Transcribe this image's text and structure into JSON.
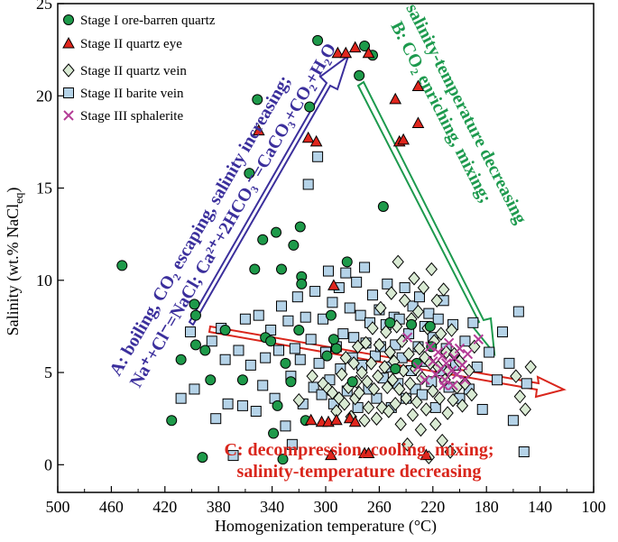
{
  "chart_data": {
    "type": "scatter",
    "xlabel": "Homogenization temperature (°C)",
    "ylabel_prefix": "Salinity (wt.% NaCl",
    "ylabel_sub": "eq",
    "ylabel_suffix": ")",
    "xlim": [
      500,
      100
    ],
    "ylim": [
      -1.5,
      25
    ],
    "xticks": [
      "500",
      "460",
      "420",
      "380",
      "340",
      "300",
      "260",
      "220",
      "180",
      "140",
      "100"
    ],
    "yticks": [
      "0",
      "5",
      "10",
      "15",
      "20",
      "25"
    ],
    "legend": [
      "Stage I ore-barren quartz",
      "Stage II quartz eye",
      "Stage II quartz vein",
      "Stage II barite vein",
      "Stage III sphalerite"
    ],
    "annotations": {
      "a_line1": "A: boiling, CO₂ escaping, salinity increasing;",
      "a_line2": "Na⁺+Cl⁻=NaCl; Ca²⁺+2HCO₃⁻=CaCO₃+CO₂+H₂O",
      "b_line1": "B: CO₂ enriching, mixing;",
      "b_line2": "salinity-temperature decreasing",
      "c_line1": "C: decompression, cooling, mixing;",
      "c_line2": "salinity-temperature decreasing"
    },
    "colors": {
      "stage1": "#1e9a4a",
      "stage2_eye": "#e0261d",
      "stage2_vein": "#d9ead3",
      "stage2_barite": "#b5d3e8",
      "stage3": "#b43c96",
      "arrow_a": "#3b2f9c",
      "arrow_b": "#1d9a4e",
      "arrow_c": "#d9261c"
    },
    "series": [
      {
        "name": "Stage I ore-barren quartz",
        "marker": "circle",
        "points": [
          [
            452,
            10.8
          ],
          [
            408,
            5.7
          ],
          [
            415,
            2.4
          ],
          [
            398,
            8.7
          ],
          [
            397,
            8.1
          ],
          [
            397,
            6.5
          ],
          [
            392,
            0.4
          ],
          [
            390,
            6.2
          ],
          [
            386,
            4.6
          ],
          [
            375,
            7.3
          ],
          [
            362,
            4.6
          ],
          [
            357,
            15.8
          ],
          [
            353,
            10.6
          ],
          [
            351,
            19.8
          ],
          [
            347,
            12.2
          ],
          [
            345,
            6.9
          ],
          [
            341,
            6.7
          ],
          [
            339,
            1.7
          ],
          [
            337,
            12.6
          ],
          [
            336,
            3.2
          ],
          [
            333,
            10.6
          ],
          [
            332,
            0.3
          ],
          [
            330,
            5.5
          ],
          [
            326,
            4.5
          ],
          [
            324,
            11.9
          ],
          [
            320,
            7.3
          ],
          [
            319,
            12.9
          ],
          [
            318,
            10.2
          ],
          [
            318,
            9.8
          ],
          [
            315,
            2.4
          ],
          [
            312,
            19.4
          ],
          [
            306,
            23
          ],
          [
            299,
            5.9
          ],
          [
            296,
            8.1
          ],
          [
            294,
            6.8
          ],
          [
            292,
            6.3
          ],
          [
            284,
            11
          ],
          [
            280,
            4.5
          ],
          [
            275,
            21.1
          ],
          [
            271,
            22.7
          ],
          [
            265,
            22.2
          ],
          [
            257,
            14
          ],
          [
            252,
            7.7
          ],
          [
            248,
            5.2
          ],
          [
            236,
            7.6
          ],
          [
            232,
            5.5
          ],
          [
            222,
            7.5
          ],
          [
            221,
            6.4
          ]
        ]
      },
      {
        "name": "Stage II quartz eye",
        "marker": "triangle",
        "points": [
          [
            350,
            18.1
          ],
          [
            313,
            17.7
          ],
          [
            311,
            2.4
          ],
          [
            307,
            17.5
          ],
          [
            303,
            2.3
          ],
          [
            298,
            2.3
          ],
          [
            296,
            0.5
          ],
          [
            294,
            9.7
          ],
          [
            292,
            2.4
          ],
          [
            291,
            22.3
          ],
          [
            285,
            22.3
          ],
          [
            282,
            2.5
          ],
          [
            278,
            22.6
          ],
          [
            278,
            2.3
          ],
          [
            271,
            0.6
          ],
          [
            268,
            22.3
          ],
          [
            268,
            0.6
          ],
          [
            248,
            19.8
          ],
          [
            245,
            17.5
          ],
          [
            242,
            17.6
          ],
          [
            231,
            20.5
          ],
          [
            231,
            18.5
          ],
          [
            225,
            0.5
          ]
        ]
      },
      {
        "name": "Stage II quartz vein",
        "marker": "diamond",
        "points": [
          [
            320,
            3.5
          ],
          [
            310,
            4.8
          ],
          [
            302,
            4.4
          ],
          [
            298,
            4.1
          ],
          [
            295,
            3.9
          ],
          [
            292,
            2.9
          ],
          [
            290,
            3.6
          ],
          [
            288,
            4.9
          ],
          [
            286,
            3.3
          ],
          [
            285,
            5.8
          ],
          [
            283,
            4.2
          ],
          [
            281,
            2.6
          ],
          [
            279,
            5.5
          ],
          [
            278,
            3.6
          ],
          [
            277,
            4.5
          ],
          [
            276,
            6.4
          ],
          [
            275,
            3.9
          ],
          [
            273,
            5.0
          ],
          [
            271,
            2.4
          ],
          [
            270,
            6.6
          ],
          [
            269,
            4.5
          ],
          [
            268,
            3.1
          ],
          [
            266,
            5.5
          ],
          [
            265,
            7.4
          ],
          [
            264,
            4.1
          ],
          [
            262,
            2.5
          ],
          [
            261,
            4.8
          ],
          [
            260,
            6.5
          ],
          [
            259,
            8.5
          ],
          [
            258,
            3.1
          ],
          [
            256,
            5.3
          ],
          [
            255,
            7.2
          ],
          [
            254,
            4.2
          ],
          [
            253,
            2.9
          ],
          [
            252,
            6.1
          ],
          [
            251,
            9.3
          ],
          [
            250,
            4.6
          ],
          [
            249,
            5.6
          ],
          [
            248,
            3.3
          ],
          [
            247,
            7.5
          ],
          [
            246,
            11.0
          ],
          [
            245,
            4.1
          ],
          [
            244,
            2.2
          ],
          [
            243,
            6.7
          ],
          [
            242,
            5.1
          ],
          [
            241,
            8.9
          ],
          [
            240,
            3.6
          ],
          [
            239,
            1.1
          ],
          [
            238,
            6.0
          ],
          [
            237,
            4.4
          ],
          [
            236,
            7.9
          ],
          [
            235,
            2.7
          ],
          [
            234,
            10.1
          ],
          [
            233,
            5.2
          ],
          [
            232,
            3.4
          ],
          [
            231,
            8.3
          ],
          [
            230,
            6.3
          ],
          [
            229,
            1.9
          ],
          [
            228,
            4.7
          ],
          [
            227,
            9.6
          ],
          [
            226,
            5.8
          ],
          [
            225,
            3.0
          ],
          [
            224,
            7.4
          ],
          [
            223,
            0.4
          ],
          [
            222,
            5.5
          ],
          [
            221,
            10.6
          ],
          [
            220,
            4.0
          ],
          [
            219,
            6.7
          ],
          [
            218,
            2.2
          ],
          [
            217,
            8.9
          ],
          [
            216,
            5.3
          ],
          [
            215,
            3.6
          ],
          [
            214,
            7.1
          ],
          [
            213,
            1.3
          ],
          [
            212,
            9.5
          ],
          [
            211,
            4.6
          ],
          [
            210,
            6.1
          ],
          [
            209,
            2.8
          ],
          [
            208,
            5.1
          ],
          [
            207,
            0.7
          ],
          [
            206,
            7.3
          ],
          [
            205,
            3.5
          ],
          [
            204,
            6.0
          ],
          [
            202,
            4.2
          ],
          [
            200,
            5.6
          ],
          [
            198,
            3.2
          ],
          [
            196,
            4.4
          ],
          [
            193,
            5.1
          ],
          [
            191,
            3.8
          ],
          [
            189,
            6.4
          ],
          [
            158,
            4.8
          ],
          [
            155,
            3.7
          ],
          [
            151,
            3.0
          ],
          [
            147,
            5.3
          ]
        ]
      },
      {
        "name": "Stage II barite vein",
        "marker": "square",
        "points": [
          [
            408,
            3.6
          ],
          [
            401,
            7.2
          ],
          [
            398,
            4.1
          ],
          [
            385,
            6.7
          ],
          [
            382,
            2.5
          ],
          [
            378,
            7.4
          ],
          [
            375,
            5.7
          ],
          [
            373,
            3.3
          ],
          [
            369,
            0.5
          ],
          [
            365,
            6.2
          ],
          [
            362,
            3.2
          ],
          [
            360,
            7.9
          ],
          [
            356,
            5.4
          ],
          [
            352,
            2.9
          ],
          [
            350,
            8.1
          ],
          [
            347,
            4.3
          ],
          [
            345,
            5.8
          ],
          [
            341,
            7.3
          ],
          [
            338,
            3.6
          ],
          [
            335,
            6.2
          ],
          [
            333,
            8.6
          ],
          [
            330,
            2.1
          ],
          [
            328,
            7.8
          ],
          [
            326,
            4.8
          ],
          [
            325,
            1.1
          ],
          [
            323,
            6.3
          ],
          [
            321,
            9.1
          ],
          [
            319,
            5.7
          ],
          [
            317,
            3.3
          ],
          [
            315,
            8.0
          ],
          [
            313,
            15.2
          ],
          [
            311,
            6.8
          ],
          [
            309,
            4.2
          ],
          [
            308,
            9.4
          ],
          [
            306,
            16.7
          ],
          [
            305,
            5.5
          ],
          [
            303,
            3.8
          ],
          [
            302,
            7.9
          ],
          [
            300,
            6.1
          ],
          [
            298,
            10.5
          ],
          [
            297,
            4.6
          ],
          [
            295,
            8.8
          ],
          [
            294,
            3.3
          ],
          [
            292,
            6.4
          ],
          [
            290,
            9.6
          ],
          [
            289,
            5.2
          ],
          [
            287,
            7.1
          ],
          [
            285,
            10.4
          ],
          [
            284,
            4.0
          ],
          [
            282,
            8.5
          ],
          [
            280,
            5.8
          ],
          [
            279,
            6.9
          ],
          [
            277,
            9.9
          ],
          [
            276,
            3.1
          ],
          [
            274,
            8.1
          ],
          [
            273,
            5.4
          ],
          [
            271,
            10.7
          ],
          [
            270,
            6.6
          ],
          [
            268,
            4.1
          ],
          [
            267,
            7.7
          ],
          [
            265,
            9.2
          ],
          [
            263,
            5.9
          ],
          [
            262,
            3.6
          ],
          [
            260,
            8.4
          ],
          [
            259,
            6.4
          ],
          [
            257,
            4.7
          ],
          [
            255,
            7.6
          ],
          [
            254,
            9.8
          ],
          [
            252,
            5.3
          ],
          [
            251,
            3.1
          ],
          [
            249,
            8.0
          ],
          [
            248,
            6.5
          ],
          [
            246,
            4.4
          ],
          [
            245,
            7.9
          ],
          [
            243,
            5.8
          ],
          [
            241,
            9.6
          ],
          [
            240,
            3.6
          ],
          [
            238,
            7.1
          ],
          [
            236,
            5.1
          ],
          [
            235,
            8.6
          ],
          [
            233,
            4.1
          ],
          [
            231,
            6.4
          ],
          [
            230,
            9.1
          ],
          [
            228,
            3.8
          ],
          [
            226,
            7.5
          ],
          [
            225,
            5.6
          ],
          [
            223,
            8.2
          ],
          [
            221,
            4.5
          ],
          [
            220,
            6.9
          ],
          [
            218,
            3.1
          ],
          [
            216,
            7.9
          ],
          [
            214,
            5.1
          ],
          [
            212,
            8.9
          ],
          [
            210,
            6.3
          ],
          [
            208,
            4.2
          ],
          [
            205,
            7.6
          ],
          [
            203,
            5.4
          ],
          [
            200,
            3.6
          ],
          [
            196,
            6.7
          ],
          [
            193,
            4.1
          ],
          [
            190,
            7.7
          ],
          [
            187,
            5.3
          ],
          [
            183,
            3.0
          ],
          [
            178,
            6.1
          ],
          [
            172,
            4.6
          ],
          [
            168,
            7.2
          ],
          [
            163,
            5.5
          ],
          [
            160,
            2.4
          ],
          [
            156,
            8.3
          ],
          [
            152,
            0.7
          ],
          [
            150,
            4.4
          ]
        ]
      },
      {
        "name": "Stage III sphalerite",
        "marker": "x",
        "points": [
          [
            239,
            6.9
          ],
          [
            231,
            5.3
          ],
          [
            226,
            4.6
          ],
          [
            222,
            6.4
          ],
          [
            220,
            5.6
          ],
          [
            218,
            4.9
          ],
          [
            216,
            6.1
          ],
          [
            214,
            5.2
          ],
          [
            213,
            5.9
          ],
          [
            211,
            4.6
          ],
          [
            210,
            5.5
          ],
          [
            208,
            6.6
          ],
          [
            206,
            5.1
          ],
          [
            205,
            4.3
          ],
          [
            204,
            5.8
          ],
          [
            202,
            4.9
          ],
          [
            200,
            6.3
          ],
          [
            198,
            5.4
          ],
          [
            196,
            4.6
          ],
          [
            194,
            6.0
          ],
          [
            212,
            4.3
          ],
          [
            186,
            6.8
          ]
        ]
      }
    ]
  }
}
